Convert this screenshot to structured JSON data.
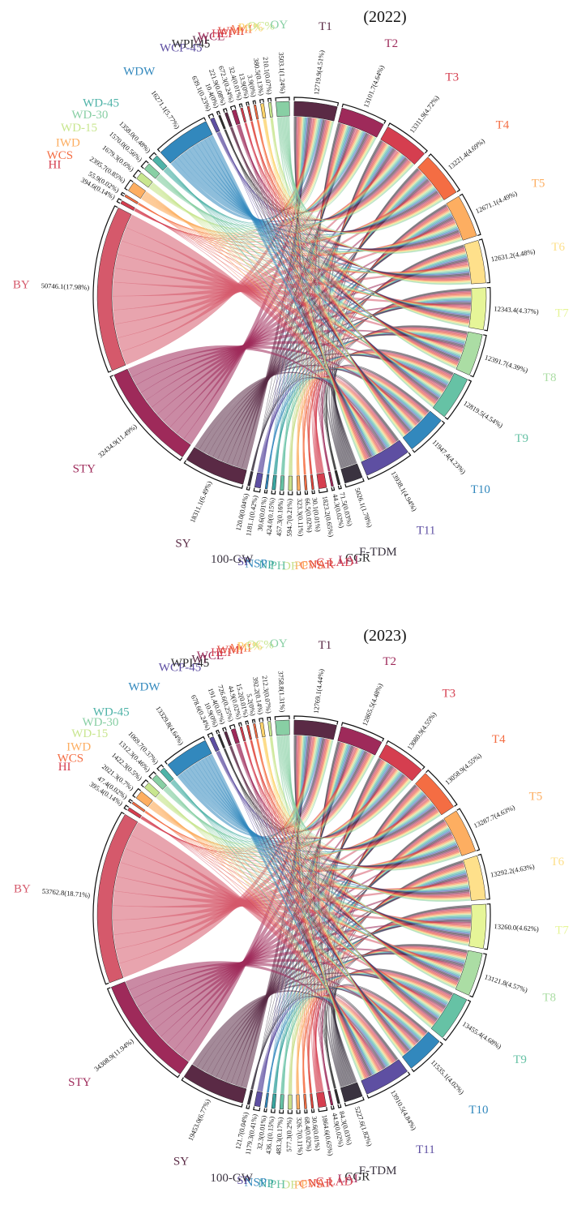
{
  "chart_data": [
    {
      "type": "chord",
      "title": "(2022)",
      "categories": [
        "T1",
        "T2",
        "T3",
        "T4",
        "T5",
        "T6",
        "T7",
        "T8",
        "T9",
        "T10",
        "T11",
        "F-TDM",
        "CGR",
        "LAI",
        "C-LAD",
        "NAR",
        "CVS",
        "PP",
        "DF",
        "PH",
        "NP",
        "NSP",
        "SP",
        "100-GW",
        "SY",
        "STY",
        "BY",
        "HI",
        "WCS",
        "IWD",
        "WD-15",
        "WD-30",
        "WD-45",
        "WDW",
        "WCP-45",
        "WPI-45",
        "WI",
        "WCE",
        "HEI",
        "WMI",
        "AMI",
        "PC%",
        "OC%",
        "OY"
      ],
      "values": [
        12719.9,
        13101.7,
        13311.9,
        13221.4,
        12671.1,
        12631.2,
        12343.4,
        12391.7,
        12819.5,
        11947.4,
        13938.1,
        5026.1,
        71.5,
        44.3,
        1823.2,
        30.1,
        66.5,
        323.3,
        594.7,
        457.3,
        424.0,
        30.6,
        1181.1,
        120.0,
        18311.1,
        32434.9,
        50746.1,
        394.6,
        55.9,
        2395.7,
        1679.3,
        1570.0,
        1358.0,
        16271.1,
        639.1,
        10.4,
        221.9,
        672.3,
        32.4,
        13.9,
        3.9,
        380.5,
        210.1,
        3503.1
      ],
      "value_labels": [
        "12719.9(4.51%)",
        "13101.7(4.64%)",
        "13311.9(4.72%)",
        "13221.4(4.69%)",
        "12671.1(4.49%)",
        "12631.2(4.48%)",
        "12343.4(4.37%)",
        "12391.7(4.39%)",
        "12819.5(4.54%)",
        "11947.4(4.23%)",
        "13938.1(4.94%)",
        "5026.1(1.78%)",
        "71.5(0.03%)",
        "44.3(0.02%)",
        "1823.2(0.65%)",
        "30.1(0.01%)",
        "66.5(0.02%)",
        "323.3(0.11%)",
        "594.7(0.21%)",
        "457.3(0.16%)",
        "424.0(0.15%)",
        "30.6(0.01%)",
        "1181.1(0.42%)",
        "120.0(0.04%)",
        "18311.1(6.49%)",
        "32434.9(11.49%)",
        "50746.1(17.98%)",
        "394.6(0.14%)",
        "55.9(0.02%)",
        "2395.7(0.85%)",
        "1679.3(0.6%)",
        "1570.0(0.56%)",
        "1358.0(0.48%)",
        "16271.1(5.77%)",
        "639.1(0.23%)",
        "10.4(0%)",
        "221.9(0.08%)",
        "672.3(0.24%)",
        "32.4(0.01%)",
        "13.9(0%)",
        "3.9(0%)",
        "380.5(0.13%)",
        "210.1(0.07%)",
        "3503.1(1.24%)"
      ],
      "colors": [
        "#5a2a45",
        "#9e2a5a",
        "#d53e4f",
        "#f46d43",
        "#fdae61",
        "#fee08b",
        "#e6f598",
        "#abdda4",
        "#66c2a5",
        "#3288bd",
        "#5e4fa2",
        "#3a3340",
        "#2d2d2d",
        "#9e2a5a",
        "#d53e4f",
        "#e0453b",
        "#f46d43",
        "#fdae61",
        "#c8df8a",
        "#66c2a5",
        "#3aa5a0",
        "#3288bd",
        "#5e4fa2",
        "#3a3340",
        "#5a2a45",
        "#9e2a5a",
        "#d5596b",
        "#d53e4f",
        "#f46d43",
        "#fdae61",
        "#c8e68f",
        "#88cfa4",
        "#4fb3a8",
        "#3288bd",
        "#5e4fa2",
        "#2d2d2d",
        "#5a2a45",
        "#9e2a5a",
        "#d53e4f",
        "#e0453b",
        "#f46d43",
        "#fdd36b",
        "#c8e68f",
        "#88cfa4"
      ]
    },
    {
      "type": "chord",
      "title": "(2023)",
      "categories": [
        "T1",
        "T2",
        "T3",
        "T4",
        "T5",
        "T6",
        "T7",
        "T8",
        "T9",
        "T10",
        "T11",
        "F-TDM",
        "CGR",
        "LAI",
        "C-LAD",
        "NAR",
        "CVS",
        "PP",
        "DF",
        "PH",
        "NP",
        "NSP",
        "SP",
        "100-GW",
        "SY",
        "STY",
        "BY",
        "HI",
        "WCS",
        "IWD",
        "WD-15",
        "WD-30",
        "WD-45",
        "WDW",
        "WCP-45",
        "WPI-45",
        "WI",
        "WCE",
        "HEI",
        "WMI",
        "AMI",
        "PC%",
        "OC%",
        "OY"
      ],
      "values": [
        12769.1,
        12865.5,
        13080.9,
        13058.9,
        13287.7,
        13292.2,
        13260.0,
        13121.8,
        13455.4,
        11535.1,
        13910.5,
        5227.6,
        84.3,
        44.9,
        1864.6,
        30.6,
        68.4,
        326.7,
        577.3,
        483.3,
        436.1,
        32.3,
        1179.3,
        121.7,
        19453.0,
        34308.9,
        53762.8,
        395.4,
        47.4,
        2021.3,
        1422.3,
        1312.3,
        1069.7,
        13329.8,
        678.6,
        10.9,
        191.4,
        726.6,
        44.9,
        15.2,
        5.2,
        392.2,
        212.3,
        3758.8
      ],
      "value_labels": [
        "12769.1(4.44%)",
        "12865.5(4.48%)",
        "13080.9(4.55%)",
        "13058.9(4.55%)",
        "13287.7(4.63%)",
        "13292.2(4.63%)",
        "13260.0(4.62%)",
        "13121.8(4.57%)",
        "13455.4(4.68%)",
        "11535.1(4.02%)",
        "13910.5(4.84%)",
        "5227.6(1.82%)",
        "84.3(0.03%)",
        "44.9(0.02%)",
        "1864.6(0.65%)",
        "30.6(0.01%)",
        "68.4(0.02%)",
        "326.7(0.11%)",
        "577.3(0.2%)",
        "483.3(0.17%)",
        "436.1(0.15%)",
        "32.3(0.01%)",
        "1179.3(0.41%)",
        "121.7(0.04%)",
        "19453.0(6.77%)",
        "34308.9(11.94%)",
        "53762.8(18.71%)",
        "395.4(0.14%)",
        "47.4(0.02%)",
        "2021.3(0.7%)",
        "1422.3(0.5%)",
        "1312.3(0.46%)",
        "1069.7(0.37%)",
        "13329.8(4.64%)",
        "678.6(0.24%)",
        "10.9(0%)",
        "191.4(0.07%)",
        "726.6(0.25%)",
        "44.9(0.02%)",
        "15.2(0.01%)",
        "5.2(0%)",
        "392.2(0.14%)",
        "212.3(0.07%)",
        "3758.8(1.31%)"
      ],
      "colors": [
        "#5a2a45",
        "#9e2a5a",
        "#d53e4f",
        "#f46d43",
        "#fdae61",
        "#fee08b",
        "#e6f598",
        "#abdda4",
        "#66c2a5",
        "#3288bd",
        "#5e4fa2",
        "#3a3340",
        "#2d2d2d",
        "#9e2a5a",
        "#d53e4f",
        "#e0453b",
        "#f46d43",
        "#fdae61",
        "#c8df8a",
        "#66c2a5",
        "#3aa5a0",
        "#3288bd",
        "#5e4fa2",
        "#3a3340",
        "#5a2a45",
        "#9e2a5a",
        "#d5596b",
        "#d53e4f",
        "#f46d43",
        "#fdae61",
        "#c8e68f",
        "#88cfa4",
        "#4fb3a8",
        "#3288bd",
        "#5e4fa2",
        "#2d2d2d",
        "#5a2a45",
        "#9e2a5a",
        "#d53e4f",
        "#e0453b",
        "#f46d43",
        "#fdd36b",
        "#c8e68f",
        "#88cfa4"
      ]
    }
  ]
}
